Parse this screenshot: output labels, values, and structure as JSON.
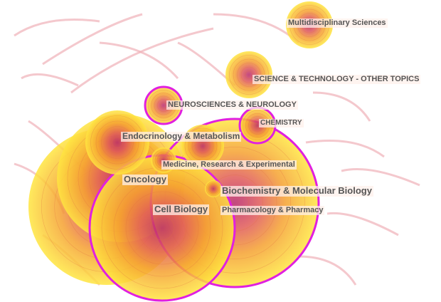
{
  "colors": {
    "ring": "#e020e0",
    "inner": "#c0306a",
    "mid": "#f08a30",
    "outer": "#ffe030",
    "link": "#f0b0b8"
  },
  "nodes": [
    {
      "id": "multi",
      "label": "Multidisciplinary Sciences"
    },
    {
      "id": "scitech",
      "label": "SCIENCE & TECHNOLOGY - OTHER TOPICS"
    },
    {
      "id": "neuro",
      "label": "NEUROSCIENCES & NEUROLOGY"
    },
    {
      "id": "chem",
      "label": "CHEMISTRY"
    },
    {
      "id": "endo",
      "label": "Endocrinology & Metabolism"
    },
    {
      "id": "med",
      "label": "Medicine, Research & Experimental"
    },
    {
      "id": "onco",
      "label": "Oncology"
    },
    {
      "id": "biochem",
      "label": "Biochemistry & Molecular Biology"
    },
    {
      "id": "cell",
      "label": "Cell Biology"
    },
    {
      "id": "pharm",
      "label": "Pharmacology & Pharmacy"
    }
  ]
}
